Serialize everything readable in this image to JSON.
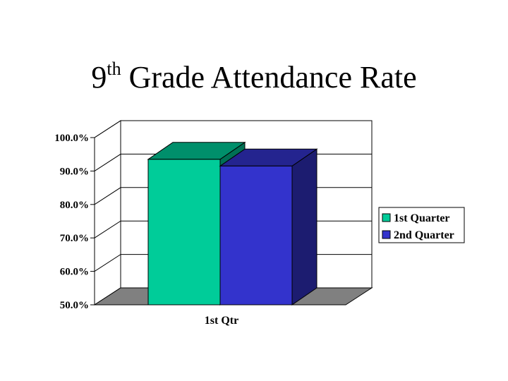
{
  "title": {
    "number": "9",
    "superscript": "th",
    "rest": "Grade Attendance Rate"
  },
  "chart_data": {
    "type": "bar",
    "title": "9th Grade Attendance Rate",
    "xlabel": "",
    "ylabel": "",
    "categories": [
      "1st Qtr"
    ],
    "series": [
      {
        "name": "1st Quarter",
        "values": [
          93.5
        ],
        "color": "#00CC99"
      },
      {
        "name": "2nd Quarter",
        "values": [
          91.5
        ],
        "color": "#3333CC"
      }
    ],
    "ylim": [
      50,
      100
    ],
    "yticks": [
      100,
      90,
      80,
      70,
      60,
      50
    ],
    "ytick_labels": [
      "100.0%",
      "90.0%",
      "80.0%",
      "70.0%",
      "60.0%",
      "50.0%"
    ],
    "grid": true,
    "three_d": true,
    "legend_position": "right"
  }
}
